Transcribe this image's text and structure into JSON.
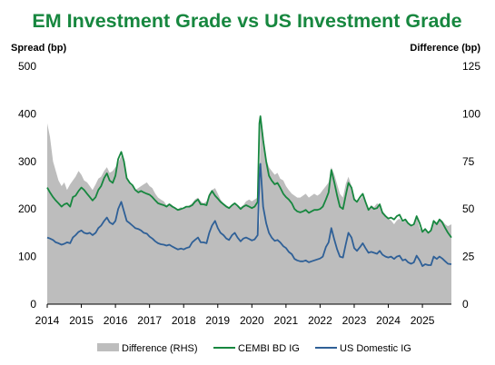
{
  "chart_data": {
    "type": "area+line",
    "title": "EM Investment Grade vs US Investment Grade",
    "ylabel_left": "Spread (bp)",
    "ylabel_right": "Difference (bp)",
    "x_range": [
      2014,
      2025.85
    ],
    "x_ticks": [
      "2014",
      "2015",
      "2016",
      "2017",
      "2018",
      "2019",
      "2020",
      "2021",
      "2022",
      "2023",
      "2024",
      "2025"
    ],
    "ylim_left": [
      0,
      500
    ],
    "yticks_left": [
      "0",
      "100",
      "200",
      "300",
      "400",
      "500"
    ],
    "ylim_right": [
      0,
      125
    ],
    "yticks_right": [
      "0",
      "25",
      "50",
      "75",
      "100",
      "125"
    ],
    "grid": false,
    "legend_position": "bottom",
    "x": [
      2014.0,
      2014.08,
      2014.17,
      2014.25,
      2014.33,
      2014.42,
      2014.5,
      2014.58,
      2014.67,
      2014.75,
      2014.83,
      2014.92,
      2015.0,
      2015.08,
      2015.17,
      2015.25,
      2015.33,
      2015.42,
      2015.5,
      2015.58,
      2015.67,
      2015.75,
      2015.83,
      2015.92,
      2016.0,
      2016.08,
      2016.17,
      2016.25,
      2016.33,
      2016.42,
      2016.5,
      2016.58,
      2016.67,
      2016.75,
      2016.83,
      2016.92,
      2017.0,
      2017.08,
      2017.17,
      2017.25,
      2017.33,
      2017.42,
      2017.5,
      2017.58,
      2017.67,
      2017.75,
      2017.83,
      2017.92,
      2018.0,
      2018.08,
      2018.17,
      2018.25,
      2018.33,
      2018.42,
      2018.5,
      2018.58,
      2018.67,
      2018.75,
      2018.83,
      2018.92,
      2019.0,
      2019.08,
      2019.17,
      2019.25,
      2019.33,
      2019.42,
      2019.5,
      2019.58,
      2019.67,
      2019.75,
      2019.83,
      2019.92,
      2020.0,
      2020.08,
      2020.17,
      2020.22,
      2020.25,
      2020.33,
      2020.42,
      2020.5,
      2020.58,
      2020.67,
      2020.75,
      2020.83,
      2020.92,
      2021.0,
      2021.08,
      2021.17,
      2021.25,
      2021.33,
      2021.42,
      2021.5,
      2021.58,
      2021.67,
      2021.75,
      2021.83,
      2021.92,
      2022.0,
      2022.08,
      2022.17,
      2022.25,
      2022.33,
      2022.42,
      2022.5,
      2022.58,
      2022.67,
      2022.75,
      2022.83,
      2022.92,
      2023.0,
      2023.08,
      2023.17,
      2023.25,
      2023.33,
      2023.42,
      2023.5,
      2023.58,
      2023.67,
      2023.75,
      2023.83,
      2023.92,
      2024.0,
      2024.08,
      2024.17,
      2024.25,
      2024.33,
      2024.42,
      2024.5,
      2024.58,
      2024.67,
      2024.75,
      2024.83,
      2024.92,
      2025.0,
      2025.08,
      2025.17,
      2025.25,
      2025.33,
      2025.42,
      2025.5,
      2025.58,
      2025.67,
      2025.75,
      2025.85
    ],
    "series": [
      {
        "name": "Difference (RHS)",
        "kind": "area",
        "axis": "right",
        "color": "#bdbdbd",
        "values": [
          95,
          88,
          75,
          70,
          65,
          62,
          64,
          60,
          63,
          65,
          67,
          70,
          68,
          65,
          64,
          62,
          60,
          63,
          66,
          67,
          70,
          72,
          69,
          70,
          72,
          74,
          78,
          74,
          66,
          63,
          62,
          60,
          61,
          62,
          63,
          64,
          62,
          61,
          58,
          56,
          55,
          54,
          52,
          53,
          52,
          50,
          50,
          51,
          50,
          51,
          52,
          53,
          55,
          56,
          54,
          53,
          54,
          58,
          60,
          61,
          58,
          55,
          53,
          52,
          51,
          52,
          53,
          52,
          51,
          52,
          54,
          55,
          54,
          55,
          56,
          40,
          100,
          90,
          76,
          72,
          70,
          68,
          69,
          66,
          65,
          62,
          60,
          58,
          57,
          56,
          56,
          57,
          58,
          56,
          57,
          58,
          57,
          58,
          60,
          62,
          64,
          72,
          68,
          63,
          58,
          56,
          63,
          67,
          62,
          56,
          54,
          55,
          57,
          54,
          50,
          52,
          51,
          53,
          52,
          49,
          47,
          45,
          44,
          42,
          44,
          45,
          43,
          44,
          42,
          41,
          42,
          46,
          40,
          38,
          39,
          37,
          40,
          44,
          43,
          45,
          44,
          42,
          41,
          42
        ]
      },
      {
        "name": "CEMBI BD IG",
        "kind": "line",
        "axis": "left",
        "color": "#17873f",
        "values": [
          245,
          235,
          225,
          218,
          212,
          205,
          210,
          212,
          205,
          225,
          228,
          238,
          245,
          240,
          232,
          225,
          218,
          225,
          240,
          248,
          265,
          275,
          260,
          255,
          270,
          305,
          320,
          300,
          265,
          255,
          250,
          240,
          235,
          238,
          235,
          232,
          230,
          225,
          218,
          212,
          210,
          208,
          205,
          210,
          205,
          202,
          198,
          200,
          202,
          205,
          205,
          208,
          215,
          220,
          210,
          210,
          208,
          228,
          238,
          228,
          222,
          215,
          210,
          205,
          202,
          208,
          212,
          207,
          200,
          205,
          208,
          205,
          202,
          205,
          215,
          380,
          395,
          345,
          300,
          270,
          260,
          252,
          255,
          245,
          232,
          225,
          220,
          212,
          200,
          195,
          193,
          195,
          198,
          192,
          195,
          198,
          198,
          200,
          205,
          220,
          235,
          282,
          255,
          228,
          205,
          200,
          228,
          255,
          245,
          220,
          215,
          225,
          232,
          215,
          198,
          205,
          200,
          202,
          210,
          192,
          185,
          180,
          182,
          178,
          185,
          188,
          175,
          178,
          170,
          165,
          168,
          185,
          170,
          152,
          158,
          150,
          155,
          175,
          168,
          178,
          172,
          160,
          150,
          140
        ]
      },
      {
        "name": "US Domestic IG",
        "kind": "line",
        "axis": "left",
        "color": "#2f6097",
        "values": [
          140,
          138,
          135,
          130,
          128,
          125,
          127,
          130,
          128,
          140,
          145,
          152,
          155,
          150,
          148,
          150,
          145,
          150,
          160,
          165,
          175,
          182,
          172,
          168,
          175,
          200,
          215,
          195,
          175,
          170,
          165,
          160,
          158,
          155,
          150,
          148,
          142,
          138,
          132,
          128,
          126,
          125,
          123,
          125,
          121,
          118,
          115,
          117,
          115,
          118,
          120,
          130,
          135,
          140,
          130,
          130,
          128,
          150,
          165,
          175,
          160,
          150,
          145,
          138,
          135,
          145,
          150,
          140,
          132,
          138,
          140,
          137,
          134,
          136,
          145,
          265,
          295,
          205,
          170,
          150,
          140,
          133,
          135,
          130,
          122,
          118,
          110,
          105,
          95,
          92,
          90,
          90,
          92,
          88,
          90,
          92,
          94,
          96,
          100,
          120,
          130,
          160,
          135,
          115,
          100,
          98,
          125,
          150,
          140,
          118,
          112,
          120,
          128,
          118,
          108,
          110,
          108,
          106,
          112,
          104,
          100,
          98,
          100,
          95,
          100,
          102,
          92,
          94,
          88,
          85,
          88,
          102,
          92,
          80,
          84,
          82,
          82,
          100,
          95,
          100,
          96,
          90,
          85,
          84
        ]
      }
    ]
  }
}
